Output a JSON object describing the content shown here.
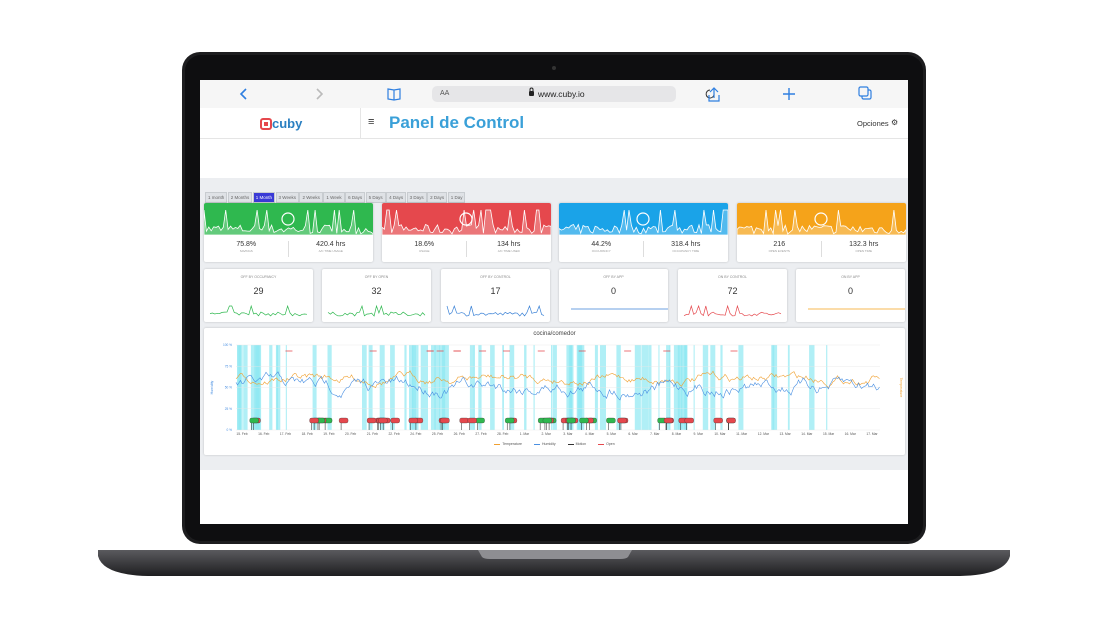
{
  "browser": {
    "text_size": "AA",
    "url": "www.cuby.io"
  },
  "header": {
    "logo": "cuby",
    "title": "Panel de Control",
    "options": "Opciones"
  },
  "time_ranges": [
    "1 month",
    "2 Months",
    "1 Month",
    "3 Weeks",
    "2 Weeks",
    "1 Week",
    "6 Days",
    "5 Days",
    "4 Days",
    "3 Days",
    "2 Days",
    "1 Day"
  ],
  "stat_cards": [
    {
      "color": "#2fb84f",
      "metrics": [
        {
          "value": "75.8%",
          "label": "SAVINGS"
        },
        {
          "value": "420.4 hrs",
          "label": "A/C TIME USAGE"
        }
      ]
    },
    {
      "color": "#e5484d",
      "metrics": [
        {
          "value": "18.6%",
          "label": "USAGE"
        },
        {
          "value": "134 hrs",
          "label": "A/C TIME USED"
        }
      ]
    },
    {
      "color": "#1aa3e8",
      "metrics": [
        {
          "value": "44.2%",
          "label": "OCCUPANCY"
        },
        {
          "value": "318.4 hrs",
          "label": "OCCUPANCY TIME"
        }
      ]
    },
    {
      "color": "#f5a31a",
      "metrics": [
        {
          "value": "216",
          "label": "OPEN EVENTS"
        },
        {
          "value": "132.3 hrs",
          "label": "OPEN TIME"
        }
      ]
    }
  ],
  "counters": [
    {
      "label": "OFF BY OCCUPANCY",
      "value": 29,
      "color": "#2fb84f"
    },
    {
      "label": "OFF BY OPEN",
      "value": 32,
      "color": "#2fb84f"
    },
    {
      "label": "OFF BY CONTROL",
      "value": 17,
      "color": "#3b82d6"
    },
    {
      "label": "OFF BY APP",
      "value": 0,
      "color": "#3b82d6"
    },
    {
      "label": "ON BY CONTROL",
      "value": 72,
      "color": "#e5484d"
    },
    {
      "label": "ON BY APP",
      "value": 0,
      "color": "#f5a31a"
    }
  ],
  "chart": {
    "title": "cocina/comedor",
    "y_title": "Humidity",
    "y2_title": "Temperature",
    "y_labels": [
      "100 %",
      "75 %",
      "50 %",
      "25 %",
      "0 %"
    ],
    "x_labels": [
      "15. Feb",
      "16. Feb",
      "17. Feb",
      "18. Feb",
      "19. Feb",
      "20. Feb",
      "21. Feb",
      "22. Feb",
      "24. Feb",
      "25. Feb",
      "26. Feb",
      "27. Feb",
      "28. Feb",
      "1. Mar",
      "2. Mar",
      "3. Mar",
      "4. Mar",
      "5. Mar",
      "6. Mar",
      "7. Mar",
      "8. Mar",
      "9. Mar",
      "10. Mar",
      "11. Mar",
      "12. Mar",
      "13. Mar",
      "14. Mar",
      "15. Mar",
      "16. Mar",
      "17. Mar"
    ],
    "legend": [
      {
        "name": "Temperature",
        "color": "#f0a030"
      },
      {
        "name": "Humidity",
        "color": "#4a90e2"
      },
      {
        "name": "Motion",
        "color": "#333333"
      },
      {
        "name": "Open",
        "color": "#e5484d"
      }
    ]
  }
}
